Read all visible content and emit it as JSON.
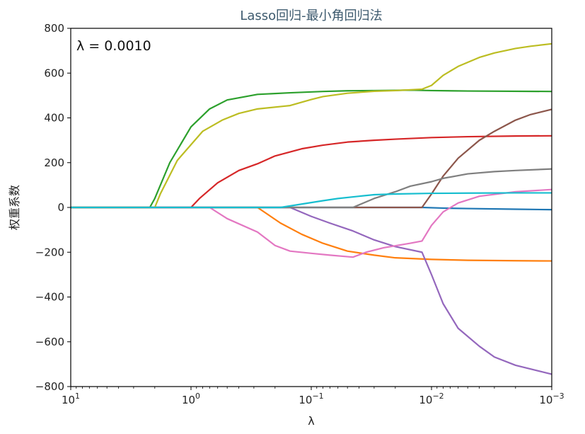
{
  "chart_data": {
    "type": "line",
    "title": "Lasso回归-最小角回归法",
    "xlabel": "λ",
    "ylabel": "权重系数",
    "annotation": "λ = 0.0010",
    "xscale": "log",
    "x_reversed": true,
    "xlim": [
      10,
      0.001
    ],
    "ylim": [
      -800,
      800
    ],
    "grid": false,
    "x_ticks": [
      {
        "value": 10,
        "base": "10",
        "exp": "1"
      },
      {
        "value": 1,
        "base": "10",
        "exp": "0"
      },
      {
        "value": 0.1,
        "base": "10",
        "exp": "−1"
      },
      {
        "value": 0.01,
        "base": "10",
        "exp": "−2"
      },
      {
        "value": 0.001,
        "base": "10",
        "exp": "−3"
      }
    ],
    "y_ticks": [
      {
        "value": 800,
        "label": "800"
      },
      {
        "value": 600,
        "label": "600"
      },
      {
        "value": 400,
        "label": "400"
      },
      {
        "value": 200,
        "label": "200"
      },
      {
        "value": 0,
        "label": "0"
      },
      {
        "value": -200,
        "label": "−200"
      },
      {
        "value": -400,
        "label": "−400"
      },
      {
        "value": -600,
        "label": "−600"
      },
      {
        "value": -800,
        "label": "−800"
      }
    ],
    "series": [
      {
        "color": "#1f77b4",
        "points": [
          [
            10,
            0
          ],
          [
            0.02,
            0
          ],
          [
            0.012,
            0
          ],
          [
            0.008,
            -3
          ],
          [
            0.005,
            -5
          ],
          [
            0.002,
            -8
          ],
          [
            0.001,
            -10
          ]
        ]
      },
      {
        "color": "#ff7f0e",
        "points": [
          [
            10,
            0
          ],
          [
            0.28,
            0
          ],
          [
            0.18,
            -70
          ],
          [
            0.12,
            -120
          ],
          [
            0.08,
            -160
          ],
          [
            0.05,
            -195
          ],
          [
            0.03,
            -213
          ],
          [
            0.02,
            -225
          ],
          [
            0.01,
            -232
          ],
          [
            0.005,
            -236
          ],
          [
            0.002,
            -238
          ],
          [
            0.001,
            -239
          ]
        ]
      },
      {
        "color": "#2ca02c",
        "points": [
          [
            10,
            0
          ],
          [
            2.2,
            0
          ],
          [
            2.0,
            40
          ],
          [
            1.5,
            200
          ],
          [
            1.0,
            360
          ],
          [
            0.7,
            440
          ],
          [
            0.5,
            480
          ],
          [
            0.28,
            505
          ],
          [
            0.15,
            512
          ],
          [
            0.08,
            518
          ],
          [
            0.05,
            521
          ],
          [
            0.03,
            522
          ],
          [
            0.02,
            523
          ],
          [
            0.015,
            524
          ],
          [
            0.01,
            522
          ],
          [
            0.005,
            520
          ],
          [
            0.001,
            518
          ]
        ]
      },
      {
        "color": "#d62728",
        "points": [
          [
            10,
            0
          ],
          [
            1.0,
            0
          ],
          [
            0.85,
            40
          ],
          [
            0.6,
            110
          ],
          [
            0.4,
            165
          ],
          [
            0.28,
            195
          ],
          [
            0.2,
            230
          ],
          [
            0.12,
            262
          ],
          [
            0.08,
            278
          ],
          [
            0.05,
            292
          ],
          [
            0.03,
            300
          ],
          [
            0.02,
            305
          ],
          [
            0.01,
            312
          ],
          [
            0.005,
            316
          ],
          [
            0.002,
            319
          ],
          [
            0.001,
            320
          ]
        ]
      },
      {
        "color": "#9467bd",
        "points": [
          [
            10,
            0
          ],
          [
            0.15,
            0
          ],
          [
            0.1,
            -40
          ],
          [
            0.07,
            -70
          ],
          [
            0.045,
            -105
          ],
          [
            0.03,
            -145
          ],
          [
            0.02,
            -175
          ],
          [
            0.012,
            -200
          ],
          [
            0.01,
            -300
          ],
          [
            0.008,
            -430
          ],
          [
            0.006,
            -540
          ],
          [
            0.004,
            -620
          ],
          [
            0.003,
            -668
          ],
          [
            0.002,
            -705
          ],
          [
            0.001,
            -745
          ]
        ]
      },
      {
        "color": "#8c564b",
        "points": [
          [
            10,
            0
          ],
          [
            0.012,
            0
          ],
          [
            0.01,
            60
          ],
          [
            0.008,
            140
          ],
          [
            0.006,
            220
          ],
          [
            0.004,
            300
          ],
          [
            0.003,
            340
          ],
          [
            0.002,
            390
          ],
          [
            0.0015,
            415
          ],
          [
            0.001,
            438
          ]
        ]
      },
      {
        "color": "#e377c2",
        "points": [
          [
            10,
            0
          ],
          [
            0.7,
            0
          ],
          [
            0.5,
            -50
          ],
          [
            0.28,
            -110
          ],
          [
            0.2,
            -170
          ],
          [
            0.15,
            -195
          ],
          [
            0.1,
            -205
          ],
          [
            0.07,
            -213
          ],
          [
            0.045,
            -222
          ],
          [
            0.035,
            -200
          ],
          [
            0.025,
            -180
          ],
          [
            0.015,
            -160
          ],
          [
            0.012,
            -150
          ],
          [
            0.01,
            -80
          ],
          [
            0.008,
            -20
          ],
          [
            0.006,
            20
          ],
          [
            0.004,
            50
          ],
          [
            0.002,
            70
          ],
          [
            0.001,
            80
          ]
        ]
      },
      {
        "color": "#7f7f7f",
        "points": [
          [
            10,
            0
          ],
          [
            0.045,
            0
          ],
          [
            0.03,
            40
          ],
          [
            0.02,
            70
          ],
          [
            0.015,
            95
          ],
          [
            0.01,
            115
          ],
          [
            0.008,
            130
          ],
          [
            0.005,
            150
          ],
          [
            0.003,
            160
          ],
          [
            0.002,
            165
          ],
          [
            0.001,
            172
          ]
        ]
      },
      {
        "color": "#bcbd22",
        "points": [
          [
            10,
            0
          ],
          [
            2.0,
            0
          ],
          [
            1.8,
            60
          ],
          [
            1.3,
            210
          ],
          [
            0.8,
            340
          ],
          [
            0.55,
            390
          ],
          [
            0.4,
            420
          ],
          [
            0.28,
            440
          ],
          [
            0.17,
            452
          ],
          [
            0.15,
            455
          ],
          [
            0.1,
            482
          ],
          [
            0.08,
            495
          ],
          [
            0.05,
            510
          ],
          [
            0.03,
            519
          ],
          [
            0.02,
            522
          ],
          [
            0.012,
            528
          ],
          [
            0.01,
            545
          ],
          [
            0.008,
            590
          ],
          [
            0.006,
            630
          ],
          [
            0.004,
            670
          ],
          [
            0.003,
            690
          ],
          [
            0.002,
            710
          ],
          [
            0.0015,
            720
          ],
          [
            0.001,
            731
          ]
        ]
      },
      {
        "color": "#17becf",
        "points": [
          [
            10,
            0
          ],
          [
            0.18,
            0
          ],
          [
            0.12,
            15
          ],
          [
            0.08,
            30
          ],
          [
            0.06,
            40
          ],
          [
            0.04,
            50
          ],
          [
            0.03,
            57
          ],
          [
            0.02,
            60
          ],
          [
            0.01,
            63
          ],
          [
            0.005,
            64
          ],
          [
            0.002,
            65
          ],
          [
            0.001,
            65
          ]
        ]
      }
    ]
  }
}
